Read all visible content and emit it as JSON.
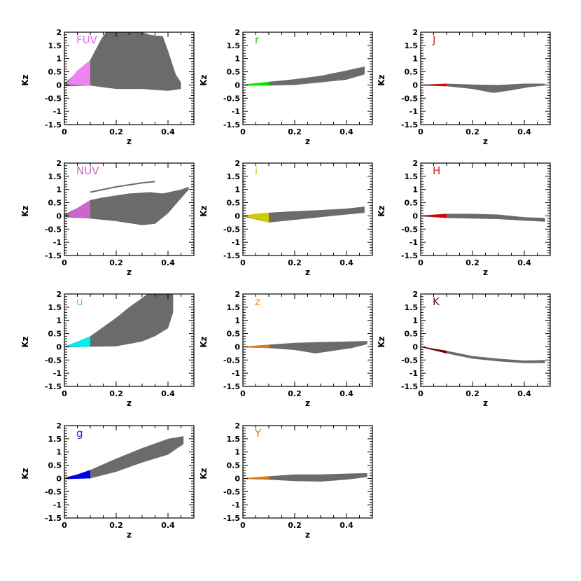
{
  "chart_data": [
    {
      "type": "scatter",
      "band": "FUV",
      "label_color": "#ee66ee",
      "fill": "#ee82ee",
      "xlabel": "z",
      "ylabel": "Kz",
      "xlim": [
        0,
        0.5
      ],
      "ylim": [
        -1.5,
        2
      ],
      "xticks": [
        "0",
        "0.2",
        "0.4"
      ],
      "yticks": [
        "-1.5",
        "-1",
        "-0.5",
        "0",
        "0.5",
        "1",
        "1.5",
        "2"
      ],
      "cloud": {
        "top": [
          [
            0,
            0.05
          ],
          [
            0.05,
            0.5
          ],
          [
            0.1,
            0.95
          ],
          [
            0.14,
            1.7
          ],
          [
            0.16,
            2.0
          ],
          [
            0.3,
            2.0
          ],
          [
            0.33,
            1.9
          ],
          [
            0.38,
            1.85
          ],
          [
            0.4,
            1.3
          ],
          [
            0.43,
            0.4
          ],
          [
            0.45,
            0.1
          ]
        ],
        "bottom": [
          [
            0,
            -0.05
          ],
          [
            0.1,
            -0.02
          ],
          [
            0.2,
            -0.15
          ],
          [
            0.3,
            -0.15
          ],
          [
            0.4,
            -0.22
          ],
          [
            0.45,
            -0.15
          ]
        ]
      },
      "highlight": {
        "top": [
          [
            0.01,
            0.08
          ],
          [
            0.05,
            0.55
          ],
          [
            0.1,
            0.95
          ]
        ],
        "bottom": [
          [
            0.01,
            0.02
          ],
          [
            0.1,
            -0.02
          ]
        ]
      }
    },
    {
      "type": "scatter",
      "band": "NUV",
      "label_color": "#cc66cc",
      "fill": "#cc66cc",
      "xlabel": "z",
      "ylabel": "Kz",
      "xlim": [
        0,
        0.5
      ],
      "ylim": [
        -1.5,
        2
      ],
      "xticks": [
        "0",
        "0.2",
        "0.4"
      ],
      "yticks": [
        "-1.5",
        "-1",
        "-0.5",
        "0",
        "0.5",
        "1",
        "1.5",
        "2"
      ],
      "cloud": {
        "top": [
          [
            0,
            0.05
          ],
          [
            0.05,
            0.3
          ],
          [
            0.1,
            0.6
          ],
          [
            0.15,
            0.7
          ],
          [
            0.25,
            0.85
          ],
          [
            0.33,
            0.9
          ],
          [
            0.38,
            0.85
          ],
          [
            0.45,
            1.0
          ],
          [
            0.48,
            1.1
          ]
        ],
        "bottom": [
          [
            0,
            -0.05
          ],
          [
            0.1,
            -0.1
          ],
          [
            0.2,
            -0.2
          ],
          [
            0.3,
            -0.35
          ],
          [
            0.35,
            -0.3
          ],
          [
            0.4,
            0.1
          ],
          [
            0.48,
            1.0
          ]
        ]
      },
      "highlight": {
        "top": [
          [
            0.01,
            0.05
          ],
          [
            0.05,
            0.3
          ],
          [
            0.1,
            0.6
          ]
        ],
        "bottom": [
          [
            0.01,
            -0.02
          ],
          [
            0.1,
            -0.1
          ]
        ]
      },
      "line": [
        [
          0.1,
          0.9
        ],
        [
          0.2,
          1.1
        ],
        [
          0.3,
          1.25
        ],
        [
          0.35,
          1.3
        ]
      ]
    },
    {
      "type": "scatter",
      "band": "u",
      "label_color": "#33dddd",
      "fill": "#00eeee",
      "xlabel": "z",
      "ylabel": "Kz",
      "xlim": [
        0,
        0.5
      ],
      "ylim": [
        -1.5,
        2
      ],
      "xticks": [
        "0",
        "0.2",
        "0.4"
      ],
      "yticks": [
        "-1.5",
        "-1",
        "-0.5",
        "0",
        "0.5",
        "1",
        "1.5",
        "2"
      ],
      "cloud": {
        "top": [
          [
            0,
            0.02
          ],
          [
            0.05,
            0.18
          ],
          [
            0.1,
            0.4
          ],
          [
            0.15,
            0.75
          ],
          [
            0.2,
            1.1
          ],
          [
            0.25,
            1.5
          ],
          [
            0.3,
            1.85
          ],
          [
            0.32,
            2.0
          ],
          [
            0.42,
            2.0
          ],
          [
            0.42,
            1.3
          ]
        ],
        "bottom": [
          [
            0,
            -0.02
          ],
          [
            0.1,
            0.0
          ],
          [
            0.2,
            0.02
          ],
          [
            0.3,
            0.2
          ],
          [
            0.35,
            0.4
          ],
          [
            0.4,
            0.7
          ],
          [
            0.42,
            1.3
          ]
        ]
      },
      "highlight": {
        "top": [
          [
            0.01,
            0.05
          ],
          [
            0.05,
            0.2
          ],
          [
            0.1,
            0.4
          ]
        ],
        "bottom": [
          [
            0.01,
            0.0
          ],
          [
            0.1,
            0.0
          ]
        ]
      }
    },
    {
      "type": "scatter",
      "band": "g",
      "label_color": "#2222ee",
      "fill": "#0000ee",
      "xlabel": "z",
      "ylabel": "Kz",
      "xlim": [
        0,
        0.5
      ],
      "ylim": [
        -1.5,
        2
      ],
      "xticks": [
        "0",
        "0.2",
        "0.4"
      ],
      "yticks": [
        "-1.5",
        "-1",
        "-0.5",
        "0",
        "0.5",
        "1",
        "1.5",
        "2"
      ],
      "cloud": {
        "top": [
          [
            0,
            0.03
          ],
          [
            0.05,
            0.15
          ],
          [
            0.1,
            0.32
          ],
          [
            0.2,
            0.75
          ],
          [
            0.3,
            1.15
          ],
          [
            0.4,
            1.5
          ],
          [
            0.46,
            1.6
          ]
        ],
        "bottom": [
          [
            0,
            -0.03
          ],
          [
            0.1,
            0.0
          ],
          [
            0.2,
            0.25
          ],
          [
            0.3,
            0.6
          ],
          [
            0.4,
            0.9
          ],
          [
            0.46,
            1.3
          ]
        ]
      },
      "highlight": {
        "top": [
          [
            0.01,
            0.04
          ],
          [
            0.05,
            0.15
          ],
          [
            0.1,
            0.32
          ]
        ],
        "bottom": [
          [
            0.01,
            -0.02
          ],
          [
            0.1,
            0.0
          ]
        ]
      }
    },
    {
      "type": "scatter",
      "band": "r",
      "label_color": "#22cc22",
      "fill": "#00ee00",
      "xlabel": "z",
      "ylabel": "Kz",
      "xlim": [
        0,
        0.5
      ],
      "ylim": [
        -1.5,
        2
      ],
      "xticks": [
        "0",
        "0.2",
        "0.4"
      ],
      "yticks": [
        "-1.5",
        "-1",
        "-0.5",
        "0",
        "0.5",
        "1",
        "1.5",
        "2"
      ],
      "cloud": {
        "top": [
          [
            0,
            0.02
          ],
          [
            0.1,
            0.12
          ],
          [
            0.2,
            0.22
          ],
          [
            0.3,
            0.35
          ],
          [
            0.4,
            0.55
          ],
          [
            0.47,
            0.7
          ]
        ],
        "bottom": [
          [
            0,
            -0.02
          ],
          [
            0.1,
            -0.02
          ],
          [
            0.2,
            0.0
          ],
          [
            0.3,
            0.1
          ],
          [
            0.4,
            0.2
          ],
          [
            0.47,
            0.4
          ]
        ]
      },
      "highlight": {
        "top": [
          [
            0.01,
            0.02
          ],
          [
            0.05,
            0.07
          ],
          [
            0.1,
            0.12
          ]
        ],
        "bottom": [
          [
            0.01,
            -0.02
          ],
          [
            0.1,
            -0.02
          ]
        ]
      }
    },
    {
      "type": "scatter",
      "band": "i",
      "label_color": "#cccc22",
      "fill": "#cccc00",
      "xlabel": "z",
      "ylabel": "Kz",
      "xlim": [
        0,
        0.5
      ],
      "ylim": [
        -1.5,
        2
      ],
      "xticks": [
        "0",
        "0.2",
        "0.4"
      ],
      "yticks": [
        "-1.5",
        "-1",
        "-0.5",
        "0",
        "0.5",
        "1",
        "1.5",
        "2"
      ],
      "cloud": {
        "top": [
          [
            0,
            0.02
          ],
          [
            0.1,
            0.12
          ],
          [
            0.2,
            0.18
          ],
          [
            0.3,
            0.22
          ],
          [
            0.4,
            0.28
          ],
          [
            0.47,
            0.35
          ]
        ],
        "bottom": [
          [
            0,
            -0.02
          ],
          [
            0.1,
            -0.25
          ],
          [
            0.2,
            -0.15
          ],
          [
            0.3,
            -0.05
          ],
          [
            0.4,
            0.05
          ],
          [
            0.47,
            0.12
          ]
        ]
      },
      "highlight": {
        "top": [
          [
            0.01,
            0.02
          ],
          [
            0.05,
            0.08
          ],
          [
            0.1,
            0.12
          ]
        ],
        "bottom": [
          [
            0.01,
            -0.02
          ],
          [
            0.05,
            -0.12
          ],
          [
            0.1,
            -0.25
          ]
        ]
      }
    },
    {
      "type": "scatter",
      "band": "z",
      "label_color": "#ee8822",
      "fill": "#ee7711",
      "xlabel": "z",
      "ylabel": "Kz",
      "xlim": [
        0,
        0.5
      ],
      "ylim": [
        -1.5,
        2
      ],
      "xticks": [
        "0",
        "0.2",
        "0.4"
      ],
      "yticks": [
        "-1.5",
        "-1",
        "-0.5",
        "0",
        "0.5",
        "1",
        "1.5",
        "2"
      ],
      "cloud": {
        "top": [
          [
            0,
            0.01
          ],
          [
            0.1,
            0.08
          ],
          [
            0.2,
            0.15
          ],
          [
            0.3,
            0.18
          ],
          [
            0.4,
            0.2
          ],
          [
            0.48,
            0.22
          ]
        ],
        "bottom": [
          [
            0,
            -0.02
          ],
          [
            0.1,
            -0.05
          ],
          [
            0.2,
            -0.12
          ],
          [
            0.28,
            -0.25
          ],
          [
            0.35,
            -0.15
          ],
          [
            0.42,
            -0.05
          ],
          [
            0.48,
            0.1
          ]
        ]
      },
      "highlight": {
        "top": [
          [
            0.01,
            0.01
          ],
          [
            0.05,
            0.04
          ],
          [
            0.1,
            0.08
          ]
        ],
        "bottom": [
          [
            0.01,
            -0.02
          ],
          [
            0.1,
            -0.05
          ]
        ]
      }
    },
    {
      "type": "scatter",
      "band": "Y",
      "label_color": "#cc7722",
      "fill": "#dd7711",
      "xlabel": "z",
      "ylabel": "Kz",
      "xlim": [
        0,
        0.5
      ],
      "ylim": [
        -1.5,
        2
      ],
      "xticks": [
        "0",
        "0.2",
        "0.4"
      ],
      "yticks": [
        "-1.5",
        "-1",
        "-0.5",
        "0",
        "0.5",
        "1",
        "1.5",
        "2"
      ],
      "cloud": {
        "top": [
          [
            0,
            0.01
          ],
          [
            0.1,
            0.08
          ],
          [
            0.2,
            0.15
          ],
          [
            0.3,
            0.15
          ],
          [
            0.4,
            0.18
          ],
          [
            0.48,
            0.2
          ]
        ],
        "bottom": [
          [
            0,
            -0.02
          ],
          [
            0.1,
            -0.05
          ],
          [
            0.2,
            -0.1
          ],
          [
            0.3,
            -0.12
          ],
          [
            0.4,
            -0.05
          ],
          [
            0.48,
            0.05
          ]
        ]
      },
      "highlight": {
        "top": [
          [
            0.01,
            0.01
          ],
          [
            0.05,
            0.04
          ],
          [
            0.1,
            0.08
          ]
        ],
        "bottom": [
          [
            0.01,
            -0.02
          ],
          [
            0.1,
            -0.05
          ]
        ]
      }
    },
    {
      "type": "scatter",
      "band": "J",
      "label_color": "#dd2222",
      "fill": "#ee0000",
      "xlabel": "z",
      "ylabel": "Kz",
      "xlim": [
        0,
        0.5
      ],
      "ylim": [
        -1.5,
        2
      ],
      "xticks": [
        "0",
        "0.2",
        "0.4"
      ],
      "yticks": [
        "-1.5",
        "-1",
        "-0.5",
        "0",
        "0.5",
        "1",
        "1.5",
        "2"
      ],
      "cloud": {
        "top": [
          [
            0,
            0.02
          ],
          [
            0.1,
            0.05
          ],
          [
            0.2,
            0.02
          ],
          [
            0.3,
            0.0
          ],
          [
            0.4,
            0.05
          ],
          [
            0.48,
            0.05
          ]
        ],
        "bottom": [
          [
            0,
            -0.02
          ],
          [
            0.1,
            -0.05
          ],
          [
            0.2,
            -0.15
          ],
          [
            0.28,
            -0.3
          ],
          [
            0.35,
            -0.2
          ],
          [
            0.42,
            -0.08
          ],
          [
            0.48,
            -0.02
          ]
        ]
      },
      "highlight": {
        "top": [
          [
            0.01,
            0.01
          ],
          [
            0.05,
            0.02
          ],
          [
            0.1,
            0.05
          ]
        ],
        "bottom": [
          [
            0.01,
            -0.01
          ],
          [
            0.1,
            -0.05
          ]
        ]
      }
    },
    {
      "type": "scatter",
      "band": "H",
      "label_color": "#cc2222",
      "fill": "#dd0000",
      "xlabel": "z",
      "ylabel": "Kz",
      "xlim": [
        0,
        0.5
      ],
      "ylim": [
        -1.5,
        2
      ],
      "xticks": [
        "0",
        "0.2",
        "0.4"
      ],
      "yticks": [
        "-1.5",
        "-1",
        "-0.5",
        "0",
        "0.5",
        "1",
        "1.5",
        "2"
      ],
      "cloud": {
        "top": [
          [
            0,
            0.02
          ],
          [
            0.1,
            0.08
          ],
          [
            0.2,
            0.08
          ],
          [
            0.3,
            0.05
          ],
          [
            0.4,
            -0.05
          ],
          [
            0.48,
            -0.08
          ]
        ],
        "bottom": [
          [
            0,
            -0.02
          ],
          [
            0.1,
            -0.08
          ],
          [
            0.2,
            -0.1
          ],
          [
            0.3,
            -0.12
          ],
          [
            0.4,
            -0.18
          ],
          [
            0.48,
            -0.22
          ]
        ]
      },
      "highlight": {
        "top": [
          [
            0.01,
            0.01
          ],
          [
            0.05,
            0.04
          ],
          [
            0.1,
            0.08
          ]
        ],
        "bottom": [
          [
            0.01,
            -0.01
          ],
          [
            0.1,
            -0.08
          ]
        ]
      }
    },
    {
      "type": "scatter",
      "band": "K",
      "label_color": "#771111",
      "fill": "#660000",
      "xlabel": "z",
      "ylabel": "Kz",
      "xlim": [
        0,
        0.5
      ],
      "ylim": [
        -1.5,
        2
      ],
      "xticks": [
        "0",
        "0.2",
        "0.4"
      ],
      "yticks": [
        "-1.5",
        "-1",
        "-0.5",
        "0",
        "0.5",
        "1",
        "1.5",
        "2"
      ],
      "cloud": {
        "top": [
          [
            0,
            0.02
          ],
          [
            0.1,
            -0.15
          ],
          [
            0.2,
            -0.35
          ],
          [
            0.3,
            -0.45
          ],
          [
            0.4,
            -0.52
          ],
          [
            0.48,
            -0.5
          ]
        ],
        "bottom": [
          [
            0,
            -0.02
          ],
          [
            0.1,
            -0.25
          ],
          [
            0.2,
            -0.45
          ],
          [
            0.3,
            -0.55
          ],
          [
            0.4,
            -0.62
          ],
          [
            0.48,
            -0.62
          ]
        ]
      },
      "highlight": {
        "top": [
          [
            0.01,
            0.0
          ],
          [
            0.05,
            -0.08
          ],
          [
            0.1,
            -0.15
          ]
        ],
        "bottom": [
          [
            0.01,
            -0.02
          ],
          [
            0.1,
            -0.25
          ]
        ]
      }
    }
  ]
}
